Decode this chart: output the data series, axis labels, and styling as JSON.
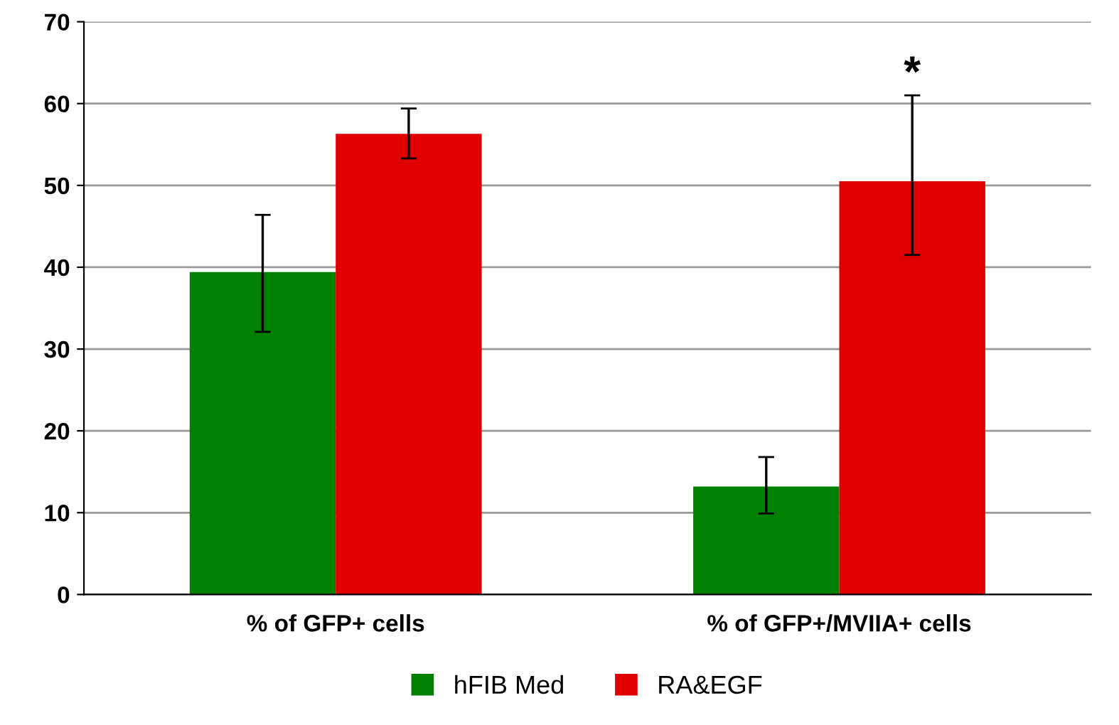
{
  "chart_data": {
    "type": "bar",
    "categories": [
      "% of GFP+ cells",
      "% of GFP+/MVIIA+ cells"
    ],
    "series": [
      {
        "name": "hFIB Med",
        "color": "#008000",
        "values": [
          39.4,
          13.2
        ],
        "errors": [
          [
            32.1,
            46.4
          ],
          [
            9.9,
            16.8
          ]
        ]
      },
      {
        "name": "RA&EGF",
        "color": "#e00000",
        "values": [
          56.3,
          50.5
        ],
        "errors": [
          [
            53.3,
            59.4
          ],
          [
            41.5,
            61.0
          ]
        ]
      }
    ],
    "ylim": [
      0,
      70
    ],
    "yticks": [
      0,
      10,
      20,
      30,
      40,
      50,
      60,
      70
    ],
    "grid": "y",
    "legend": "bottom",
    "annotations": [
      "*"
    ]
  }
}
